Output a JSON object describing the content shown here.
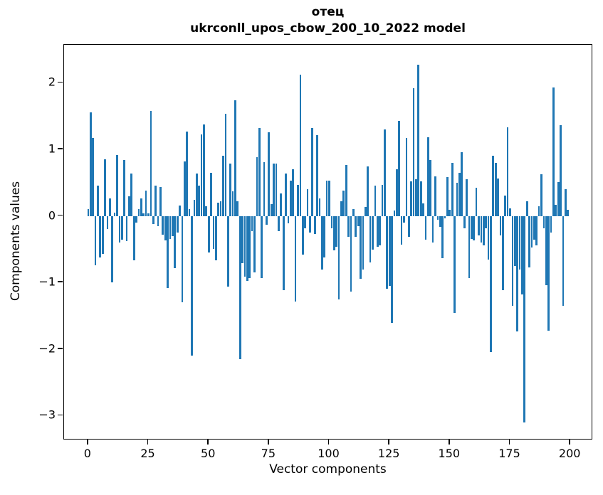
{
  "figure": {
    "title": "отец",
    "subtitle": "ukrconll_upos_cbow_200_10_2022 model",
    "xlabel": "Vector components",
    "ylabel": "Components values"
  },
  "chart_data": {
    "type": "bar",
    "title": "отец",
    "subtitle": "ukrconll_upos_cbow_200_10_2022 model",
    "xlabel": "Vector components",
    "ylabel": "Components values",
    "bar_color": "#1f77b4",
    "grid": false,
    "legend": "none",
    "x_start": 0,
    "bar_width": 0.8,
    "xticks": [
      0,
      25,
      50,
      75,
      100,
      125,
      150,
      175,
      200
    ],
    "yticks": [
      2,
      1,
      0,
      -1,
      -2,
      -3
    ],
    "xlim": [
      -10.0,
      209.4
    ],
    "ylim": [
      -3.37,
      2.57
    ],
    "values": [
      0.1,
      1.55,
      1.17,
      -0.74,
      0.46,
      -0.62,
      -0.57,
      0.85,
      -0.2,
      0.26,
      -1.0,
      0.05,
      0.91,
      -0.4,
      -0.36,
      0.84,
      -0.38,
      0.29,
      0.64,
      -0.67,
      -0.1,
      0.1,
      0.26,
      0.04,
      0.38,
      0.04,
      1.58,
      -0.12,
      0.45,
      -0.15,
      0.43,
      -0.28,
      -0.37,
      -1.08,
      -0.35,
      -0.3,
      -0.79,
      -0.25,
      0.16,
      -1.3,
      0.82,
      1.27,
      0.1,
      -2.1,
      0.24,
      0.64,
      0.45,
      1.22,
      1.37,
      0.15,
      -0.55,
      0.65,
      -0.5,
      -0.67,
      0.2,
      0.22,
      0.9,
      1.53,
      -1.06,
      0.79,
      0.37,
      1.74,
      0.22,
      -2.15,
      -0.71,
      -0.91,
      -0.98,
      -0.93,
      -0.23,
      -0.85,
      0.88,
      1.32,
      -0.93,
      0.81,
      -0.13,
      1.26,
      0.18,
      0.79,
      0.79,
      -0.23,
      0.34,
      -1.12,
      0.64,
      -0.11,
      0.53,
      0.7,
      -1.29,
      0.47,
      2.12,
      -0.58,
      -0.19,
      0.4,
      -0.25,
      1.32,
      -0.27,
      1.21,
      0.26,
      -0.81,
      -0.62,
      0.53,
      0.53,
      -0.19,
      -0.52,
      -0.46,
      -1.25,
      0.22,
      0.38,
      0.76,
      -0.31,
      -1.14,
      0.1,
      -0.32,
      -0.15,
      -0.94,
      -0.81,
      0.13,
      0.74,
      -0.7,
      -0.51,
      0.45,
      -0.46,
      -0.44,
      0.47,
      1.3,
      -1.09,
      -1.05,
      -1.61,
      0.08,
      0.7,
      1.43,
      -0.43,
      -0.1,
      1.17,
      -0.31,
      0.52,
      1.92,
      0.55,
      2.27,
      0.52,
      0.19,
      -0.36,
      1.18,
      0.84,
      -0.4,
      0.59,
      -0.06,
      -0.16,
      -0.63,
      -0.04,
      0.58,
      0.09,
      0.8,
      -1.46,
      0.5,
      0.65,
      0.96,
      -0.19,
      0.55,
      -0.93,
      -0.35,
      -0.37,
      0.42,
      -0.29,
      -0.4,
      -0.44,
      -0.19,
      -0.66,
      -2.05,
      0.9,
      0.8,
      0.56,
      -0.29,
      -1.12,
      0.3,
      1.33,
      0.11,
      -1.35,
      -0.75,
      -1.74,
      -0.81,
      -1.18,
      -3.1,
      0.22,
      -0.77,
      -0.48,
      -0.36,
      -0.44,
      0.14,
      0.63,
      -0.19,
      -1.04,
      -1.72,
      -0.25,
      1.93,
      0.17,
      0.51,
      1.36,
      -1.35,
      0.4,
      0.09
    ]
  }
}
